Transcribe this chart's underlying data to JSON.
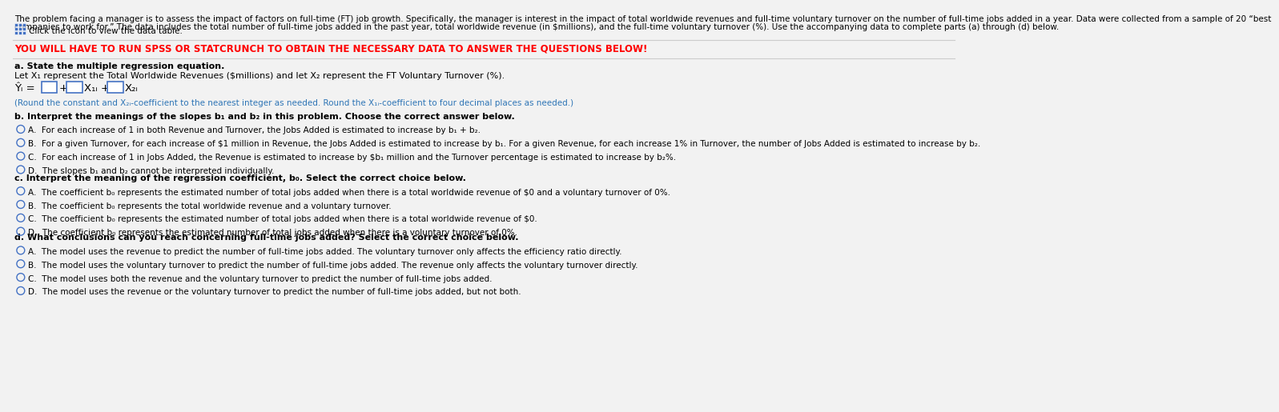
{
  "bg_color": "#f2f2f2",
  "content_bg": "#ffffff",
  "intro_line1": "The problem facing a manager is to assess the impact of factors on full-time (FT) job growth. Specifically, the manager is interest in the impact of total worldwide revenues and full-time voluntary turnover on the number of full-time jobs added in a year. Data were collected from a sample of 20 “best",
  "intro_line2": "companies to work for.” The data includes the total number of full-time jobs added in the past year, total worldwide revenue (in $millions), and the full-time voluntary turnover (%). Use the accompanying data to complete parts (a) through (d) below.",
  "click_text": "Click the icon to view the data table.",
  "warning_text": "YOU WILL HAVE TO RUN SPSS OR STATCRUNCH TO OBTAIN THE NECESSARY DATA TO ANSWER THE QUESTIONS BELOW!",
  "part_a_header": "a. State the multiple regression equation.",
  "part_a_line1": "Let X₁ represent the Total Worldwide Revenues ($millions) and let X₂ represent the FT Voluntary Turnover (%).",
  "part_a_note": "(Round the constant and X₂ᵢ-coefficient to the nearest integer as needed. Round the X₁ᵢ-coefficient to four decimal places as needed.)",
  "part_b_header": "b. Interpret the meanings of the slopes b₁ and b₂ in this problem. Choose the correct answer below.",
  "part_b_A": "A.  For each increase of 1 in both Revenue and Turnover, the Jobs Added is estimated to increase by b₁ + b₂.",
  "part_b_B": "B.  For a given Turnover, for each increase of $1 million in Revenue, the Jobs Added is estimated to increase by b₁. For a given Revenue, for each increase 1% in Turnover, the number of Jobs Added is estimated to increase by b₂.",
  "part_b_C": "C.  For each increase of 1 in Jobs Added, the Revenue is estimated to increase by $b₁ million and the Turnover percentage is estimated to increase by b₂%.",
  "part_b_D": "D.  The slopes b₁ and b₂ cannot be interpreted individually.",
  "part_c_header": "c. Interpret the meaning of the regression coefficient, b₀. Select the correct choice below.",
  "part_c_A": "A.  The coefficient b₀ represents the estimated number of total jobs added when there is a total worldwide revenue of $0 and a voluntary turnover of 0%.",
  "part_c_B": "B.  The coefficient b₀ represents the total worldwide revenue and a voluntary turnover.",
  "part_c_C": "C.  The coefficient b₀ represents the estimated number of total jobs added when there is a total worldwide revenue of $0.",
  "part_c_D": "D.  The coefficient b₀ represents the estimated number of total jobs added when there is a voluntary turnover of 0%.",
  "part_d_header": "d. What conclusions can you reach concerning full-time jobs added? Select the correct choice below.",
  "part_d_A": "A.  The model uses the revenue to predict the number of full-time jobs added. The voluntary turnover only affects the efficiency ratio directly.",
  "part_d_B": "B.  The model uses the voluntary turnover to predict the number of full-time jobs added. The revenue only affects the voluntary turnover directly.",
  "part_d_C": "C.  The model uses both the revenue and the voluntary turnover to predict the number of full-time jobs added.",
  "part_d_D": "D.  The model uses the revenue or the voluntary turnover to predict the number of full-time jobs added, but not both.",
  "radio_color": "#4472C4",
  "box_color": "#4472C4",
  "blue_text_color": "#2E75B6",
  "red_text_color": "#FF0000",
  "sep_color": "#CCCCCC"
}
